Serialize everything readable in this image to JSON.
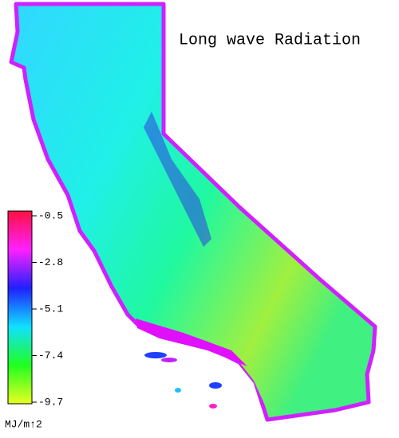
{
  "map": {
    "title": "Long wave Radiation",
    "colorbar": {
      "range": [
        -0.5,
        -9.7
      ],
      "ticks": [
        -0.5,
        -2.8,
        -5.1,
        -7.4,
        -9.7
      ],
      "colors": [
        "#ff1040",
        "#ff20ff",
        "#2020ff",
        "#10e0ff",
        "#20ff20",
        "#e8ff20"
      ],
      "unit": "MJ/m↑2"
    }
  }
}
